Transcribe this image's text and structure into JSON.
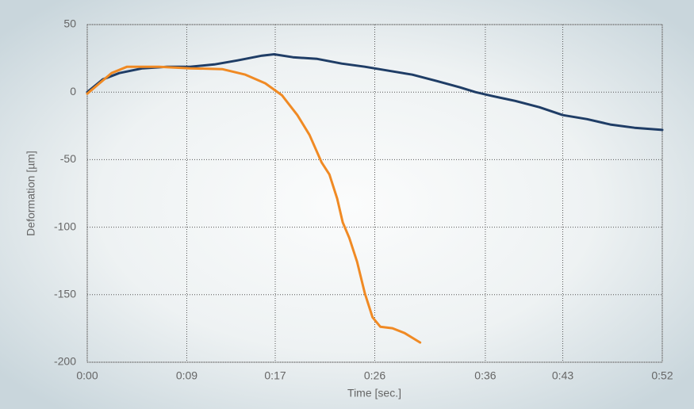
{
  "chart_data": {
    "type": "line",
    "x_label": "Time [sec.]",
    "y_label": "Deformation [µm]",
    "xlim": [
      0,
      52
    ],
    "ylim": [
      -200,
      50
    ],
    "xticks": [
      {
        "value": 0,
        "label": "0:00"
      },
      {
        "value": 9,
        "label": "0:09"
      },
      {
        "value": 17,
        "label": "0:17"
      },
      {
        "value": 26,
        "label": "0:26"
      },
      {
        "value": 36,
        "label": "0:36"
      },
      {
        "value": 43,
        "label": "0:43"
      },
      {
        "value": 52,
        "label": "0:52"
      }
    ],
    "yticks": [
      50,
      0,
      -50,
      -100,
      -150,
      -200
    ],
    "grid": true,
    "series": [
      {
        "color": "#1f3d66",
        "x": [
          0,
          1.4,
          2.9,
          5.0,
          7.2,
          9.3,
          11.5,
          13.6,
          15.8,
          16.9,
          18.6,
          20.8,
          23.0,
          25.1,
          27.3,
          29.4,
          31.6,
          33.7,
          35.1,
          36.6,
          38.7,
          40.9,
          43.0,
          45.2,
          47.3,
          49.5,
          52
        ],
        "values": [
          0,
          9.4,
          14.1,
          17.6,
          18.8,
          18.8,
          20.5,
          23.5,
          27,
          28,
          25.8,
          24.6,
          21.1,
          18.8,
          15.8,
          12.9,
          8.2,
          3.5,
          0,
          -2.9,
          -6.5,
          -11.2,
          -17,
          -20,
          -24,
          -26.4,
          -28
        ]
      },
      {
        "color": "#f08a24",
        "x": [
          0,
          2.2,
          3.6,
          6.5,
          9.3,
          12.2,
          14.3,
          16.1,
          17.6,
          19.0,
          20.1,
          21.2,
          21.9,
          22.6,
          23.1,
          23.7,
          24.4,
          25.1,
          25.8,
          26.5,
          27.6,
          28.7,
          30.1
        ],
        "values": [
          -1.2,
          14.1,
          18.8,
          18.8,
          17.6,
          17,
          12.9,
          6.5,
          -2.3,
          -17,
          -31.7,
          -52.2,
          -61,
          -78.8,
          -96.4,
          -108,
          -125.6,
          -149,
          -166.7,
          -173.7,
          -174.8,
          -178.4,
          -185.4
        ]
      }
    ]
  }
}
